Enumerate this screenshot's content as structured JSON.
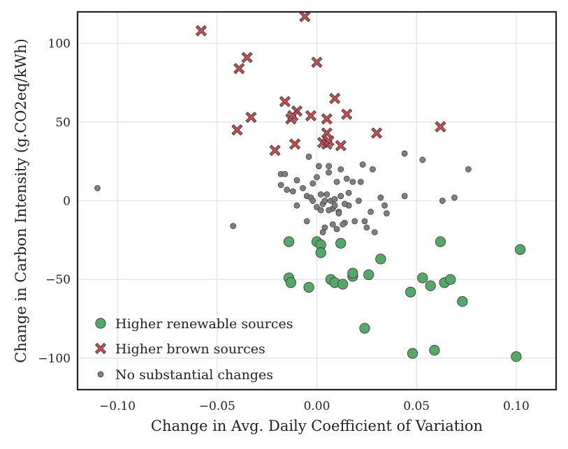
{
  "chart_data": {
    "type": "scatter",
    "xlabel": "Change in Avg. Daily Coefficient of Variation",
    "ylabel": "Change in Carbon Intensity (g.CO2eq/kWh)",
    "xlim": [
      -0.12,
      0.12
    ],
    "ylim": [
      -120,
      120
    ],
    "x_ticks": [
      -0.1,
      -0.05,
      0.0,
      0.05,
      0.1
    ],
    "x_tick_labels": [
      "−0.10",
      "−0.05",
      "0.00",
      "0.05",
      "0.10"
    ],
    "y_ticks": [
      -100,
      -50,
      0,
      50,
      100
    ],
    "y_tick_labels": [
      "−100",
      "−50",
      "0",
      "50",
      "100"
    ],
    "grid": true,
    "legend_position": "bottom-left",
    "colors": {
      "green": "#55a868",
      "red": "#c44e52",
      "gray": "#7f7f7f",
      "edge": "#333333"
    },
    "series": [
      {
        "name": "Higher renewable sources",
        "marker": "circle-large",
        "color": "#55a868",
        "points": [
          [
            -0.014,
            -26
          ],
          [
            0.0,
            -26
          ],
          [
            0.002,
            -28
          ],
          [
            0.002,
            -33
          ],
          [
            0.012,
            -27
          ],
          [
            0.032,
            -37
          ],
          [
            0.062,
            -26
          ],
          [
            0.102,
            -31
          ],
          [
            -0.014,
            -49
          ],
          [
            -0.013,
            -52
          ],
          [
            -0.004,
            -55
          ],
          [
            0.007,
            -50
          ],
          [
            0.009,
            -52
          ],
          [
            0.013,
            -53
          ],
          [
            0.018,
            -48
          ],
          [
            0.018,
            -46
          ],
          [
            0.026,
            -47
          ],
          [
            0.047,
            -58
          ],
          [
            0.053,
            -49
          ],
          [
            0.057,
            -54
          ],
          [
            0.064,
            -52
          ],
          [
            0.067,
            -50
          ],
          [
            0.073,
            -64
          ],
          [
            0.024,
            -81
          ],
          [
            0.048,
            -97
          ],
          [
            0.059,
            -95
          ],
          [
            0.1,
            -99
          ]
        ]
      },
      {
        "name": "Higher brown sources",
        "marker": "x",
        "color": "#c44e52",
        "points": [
          [
            -0.058,
            108
          ],
          [
            -0.006,
            117
          ],
          [
            -0.035,
            91
          ],
          [
            -0.039,
            84
          ],
          [
            0.0,
            88
          ],
          [
            -0.016,
            63
          ],
          [
            0.009,
            65
          ],
          [
            -0.01,
            57
          ],
          [
            -0.033,
            53
          ],
          [
            -0.013,
            52
          ],
          [
            -0.012,
            54
          ],
          [
            -0.003,
            54
          ],
          [
            0.005,
            52
          ],
          [
            0.015,
            55
          ],
          [
            -0.04,
            45
          ],
          [
            0.005,
            43
          ],
          [
            0.03,
            43
          ],
          [
            0.062,
            47
          ],
          [
            -0.011,
            36
          ],
          [
            0.003,
            37
          ],
          [
            0.005,
            36
          ],
          [
            0.006,
            38
          ],
          [
            0.012,
            35
          ],
          [
            -0.021,
            32
          ]
        ]
      },
      {
        "name": "No substantial changes",
        "marker": "circle-small",
        "color": "#7f7f7f",
        "points": [
          [
            -0.11,
            8
          ],
          [
            -0.042,
            -16
          ],
          [
            0.044,
            30
          ],
          [
            0.053,
            26
          ],
          [
            0.076,
            20
          ],
          [
            -0.018,
            17
          ],
          [
            -0.016,
            17
          ],
          [
            -0.018,
            10
          ],
          [
            -0.015,
            7
          ],
          [
            -0.012,
            6
          ],
          [
            -0.01,
            13
          ],
          [
            -0.007,
            8
          ],
          [
            -0.005,
            3
          ],
          [
            -0.003,
            2
          ],
          [
            -0.002,
            11
          ],
          [
            0.0,
            15
          ],
          [
            0.001,
            22
          ],
          [
            0.002,
            4
          ],
          [
            0.003,
            -2
          ],
          [
            0.004,
            0
          ],
          [
            0.005,
            4
          ],
          [
            0.006,
            18
          ],
          [
            0.006,
            22
          ],
          [
            0.007,
            0
          ],
          [
            0.008,
            -5
          ],
          [
            0.009,
            1
          ],
          [
            0.01,
            12
          ],
          [
            0.011,
            -7
          ],
          [
            0.012,
            3
          ],
          [
            0.012,
            20
          ],
          [
            0.014,
            -14
          ],
          [
            0.015,
            14
          ],
          [
            0.016,
            -3
          ],
          [
            0.018,
            12
          ],
          [
            0.019,
            -13
          ],
          [
            0.021,
            0
          ],
          [
            0.022,
            12
          ],
          [
            0.023,
            23
          ],
          [
            0.024,
            -13
          ],
          [
            0.025,
            -17
          ],
          [
            0.027,
            -7
          ],
          [
            0.028,
            20
          ],
          [
            0.029,
            -20
          ],
          [
            0.032,
            2
          ],
          [
            0.034,
            -3
          ],
          [
            0.035,
            -8
          ],
          [
            0.044,
            3
          ],
          [
            0.063,
            0
          ],
          [
            0.069,
            2
          ],
          [
            -0.01,
            -3
          ],
          [
            -0.005,
            -13
          ],
          [
            -0.002,
            0
          ],
          [
            0.003,
            -20
          ],
          [
            0.004,
            -17
          ],
          [
            0.006,
            -6
          ],
          [
            0.008,
            -15
          ],
          [
            0.01,
            -18
          ],
          [
            0.011,
            -8
          ],
          [
            0.013,
            -15
          ],
          [
            0.014,
            -2
          ],
          [
            -0.004,
            28
          ],
          [
            0.0,
            -4
          ],
          [
            0.002,
            -6
          ],
          [
            0.009,
            -3
          ],
          [
            0.016,
            5
          ]
        ]
      }
    ]
  }
}
